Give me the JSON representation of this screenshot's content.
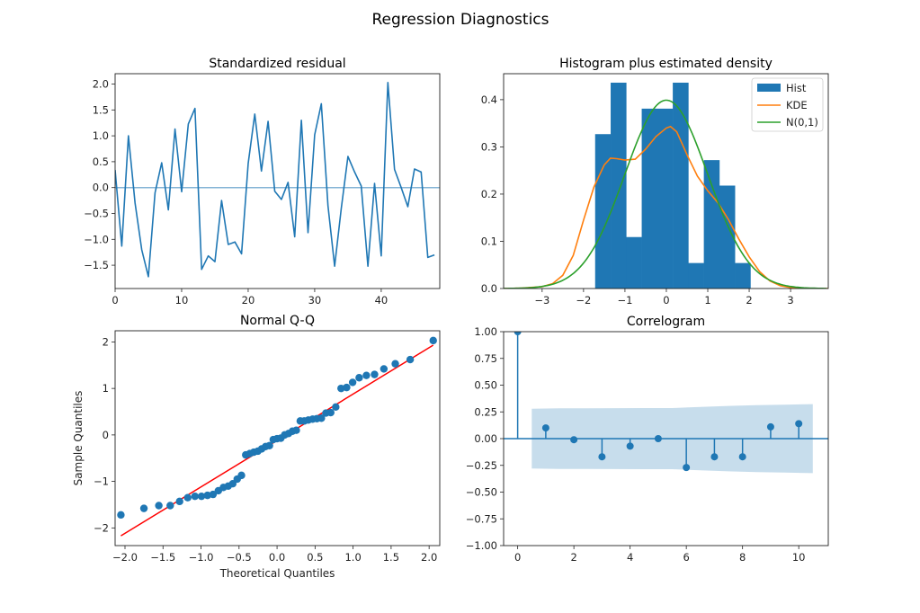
{
  "figure": {
    "title": "Regression Diagnostics"
  },
  "chart_data": [
    {
      "id": "residual",
      "type": "line",
      "title": "Standardized residual",
      "xlabel": "",
      "ylabel": "",
      "xlim": [
        0,
        48.8
      ],
      "ylim": [
        -1.95,
        2.2
      ],
      "xticks": [
        0,
        10,
        20,
        30,
        40
      ],
      "xtick_labels": [
        "0",
        "10",
        "20",
        "30",
        "40"
      ],
      "yticks": [
        -1.5,
        -1.0,
        -0.5,
        0.0,
        0.5,
        1.0,
        1.5,
        2.0
      ],
      "ytick_labels": [
        "−1.5",
        "−1.0",
        "−0.5",
        "0.0",
        "0.5",
        "1.0",
        "1.5",
        "2.0"
      ],
      "reference_line": 0.0,
      "color": "#1f77b4",
      "x": [
        0,
        1,
        2,
        3,
        4,
        5,
        6,
        7,
        8,
        9,
        10,
        11,
        12,
        13,
        14,
        15,
        16,
        17,
        18,
        19,
        20,
        21,
        22,
        23,
        24,
        25,
        26,
        27,
        28,
        29,
        30,
        31,
        32,
        33,
        34,
        35,
        36,
        37,
        38,
        39,
        40,
        41,
        42,
        43,
        44,
        45,
        46,
        47,
        48
      ],
      "values": [
        0.34,
        -1.13,
        1.0,
        -0.3,
        -1.2,
        -1.72,
        -0.1,
        0.48,
        -0.43,
        1.13,
        -0.08,
        1.23,
        1.53,
        -1.58,
        -1.32,
        -1.43,
        -0.25,
        -1.1,
        -1.05,
        -1.28,
        0.47,
        1.42,
        0.32,
        1.28,
        -0.07,
        -0.23,
        0.1,
        -0.95,
        1.3,
        -0.87,
        1.02,
        1.62,
        -0.35,
        -1.52,
        -0.4,
        0.6,
        0.3,
        0.03,
        -1.52,
        0.08,
        -1.32,
        2.03,
        0.35,
        0.0,
        -0.37,
        0.36,
        0.3,
        -1.35,
        -1.3
      ]
    },
    {
      "id": "histogram",
      "type": "bar",
      "title": "Histogram plus estimated density",
      "xlim": [
        -3.93,
        3.91
      ],
      "ylim": [
        0,
        0.455
      ],
      "xticks": [
        -3,
        -2,
        -1,
        0,
        1,
        2,
        3
      ],
      "xtick_labels": [
        "−3",
        "−2",
        "−1",
        "0",
        "1",
        "2",
        "3"
      ],
      "yticks": [
        0.0,
        0.1,
        0.2,
        0.3,
        0.4
      ],
      "ytick_labels": [
        "0.0",
        "0.1",
        "0.2",
        "0.3",
        "0.4"
      ],
      "bin_edges": [
        -1.72,
        -1.345,
        -0.97,
        -0.595,
        -0.22,
        0.155,
        0.53,
        0.905,
        1.28,
        1.655,
        2.03
      ],
      "values": [
        0.327,
        0.436,
        0.109,
        0.381,
        0.381,
        0.436,
        0.054,
        0.272,
        0.218,
        0.054
      ],
      "series": [
        {
          "name": "Hist",
          "color": "#1f77b4",
          "kind": "bar"
        },
        {
          "name": "KDE",
          "color": "#ff7f0e",
          "kind": "line",
          "x": [
            -3.93,
            -3.5,
            -3.0,
            -2.75,
            -2.5,
            -2.25,
            -2.0,
            -1.75,
            -1.5,
            -1.35,
            -1.2,
            -1.0,
            -0.75,
            -0.5,
            -0.25,
            0.0,
            0.1,
            0.25,
            0.5,
            0.75,
            1.0,
            1.25,
            1.5,
            1.75,
            2.0,
            2.25,
            2.5,
            2.75,
            3.0,
            3.5,
            3.91
          ],
          "y": [
            0.0,
            0.001,
            0.004,
            0.01,
            0.028,
            0.07,
            0.145,
            0.215,
            0.262,
            0.276,
            0.275,
            0.272,
            0.274,
            0.295,
            0.322,
            0.34,
            0.343,
            0.332,
            0.283,
            0.238,
            0.207,
            0.181,
            0.146,
            0.105,
            0.067,
            0.036,
            0.016,
            0.006,
            0.002,
            0.0,
            0.0
          ]
        },
        {
          "name": "N(0,1)",
          "color": "#2ca02c",
          "kind": "line",
          "function": "standard_normal_pdf"
        }
      ],
      "legend": {
        "position": "top-right",
        "entries": [
          "Hist",
          "KDE",
          "N(0,1)"
        ]
      }
    },
    {
      "id": "qq",
      "type": "scatter",
      "title": "Normal Q-Q",
      "xlabel": "Theoretical Quantiles",
      "ylabel": "Sample Quantiles",
      "xlim": [
        -2.13,
        2.14
      ],
      "ylim": [
        -2.38,
        2.24
      ],
      "xticks": [
        -2.0,
        -1.5,
        -1.0,
        -0.5,
        0.0,
        0.5,
        1.0,
        1.5,
        2.0
      ],
      "xtick_labels": [
        "−2.0",
        "−1.5",
        "−1.0",
        "−0.5",
        "0.0",
        "0.5",
        "1.0",
        "1.5",
        "2.0"
      ],
      "yticks": [
        -2,
        -1,
        0,
        1,
        2
      ],
      "ytick_labels": [
        "−2",
        "−1",
        "0",
        "1",
        "2"
      ],
      "point_color": "#1f77b4",
      "line_color": "#ff0000",
      "fit_line": {
        "x": [
          -2.054,
          2.054
        ],
        "y": [
          -2.17,
          1.93
        ]
      },
      "x": [
        -2.054,
        -1.751,
        -1.555,
        -1.405,
        -1.282,
        -1.175,
        -1.08,
        -0.994,
        -0.915,
        -0.842,
        -0.772,
        -0.706,
        -0.643,
        -0.583,
        -0.524,
        -0.468,
        -0.412,
        -0.358,
        -0.305,
        -0.253,
        -0.202,
        -0.151,
        -0.1,
        -0.05,
        0.0,
        0.05,
        0.1,
        0.151,
        0.202,
        0.253,
        0.305,
        0.358,
        0.412,
        0.468,
        0.524,
        0.583,
        0.643,
        0.706,
        0.772,
        0.842,
        0.915,
        0.994,
        1.08,
        1.175,
        1.282,
        1.405,
        1.555,
        1.751,
        2.054
      ],
      "y": [
        -1.72,
        -1.58,
        -1.52,
        -1.52,
        -1.43,
        -1.35,
        -1.32,
        -1.32,
        -1.3,
        -1.28,
        -1.2,
        -1.13,
        -1.1,
        -1.05,
        -0.95,
        -0.87,
        -0.43,
        -0.4,
        -0.37,
        -0.35,
        -0.3,
        -0.25,
        -0.23,
        -0.1,
        -0.08,
        -0.07,
        0.0,
        0.03,
        0.08,
        0.1,
        0.3,
        0.3,
        0.32,
        0.34,
        0.35,
        0.36,
        0.47,
        0.48,
        0.6,
        1.0,
        1.02,
        1.13,
        1.23,
        1.28,
        1.3,
        1.42,
        1.53,
        1.62,
        2.03
      ]
    },
    {
      "id": "correlogram",
      "type": "bar",
      "subtype": "stem",
      "title": "Correlogram",
      "xlim": [
        -0.5,
        11.05
      ],
      "ylim": [
        -1.0,
        1.0
      ],
      "xticks": [
        0,
        2,
        4,
        6,
        8,
        10
      ],
      "xtick_labels": [
        "0",
        "2",
        "4",
        "6",
        "8",
        "10"
      ],
      "yticks": [
        -1.0,
        -0.75,
        -0.5,
        -0.25,
        0.0,
        0.25,
        0.5,
        0.75,
        1.0
      ],
      "ytick_labels": [
        "−1.00",
        "−0.75",
        "−0.50",
        "−0.25",
        "0.00",
        "0.25",
        "0.50",
        "0.75",
        "1.00"
      ],
      "color": "#1f77b4",
      "band_color": "#1f77b4",
      "categories": [
        0,
        1,
        2,
        3,
        4,
        5,
        6,
        7,
        8,
        9,
        10
      ],
      "values": [
        1.0,
        0.1,
        -0.01,
        -0.17,
        -0.07,
        0.0,
        -0.27,
        -0.17,
        -0.17,
        0.11,
        0.14
      ],
      "confidence_band": {
        "lags": [
          0.5,
          1.5,
          2.5,
          3.5,
          4.5,
          5.5,
          6.5,
          7.5,
          8.5,
          9.5,
          10.5
        ],
        "upper": [
          0.28,
          0.283,
          0.283,
          0.285,
          0.286,
          0.286,
          0.297,
          0.306,
          0.313,
          0.318,
          0.323
        ],
        "lower": [
          -0.28,
          -0.283,
          -0.283,
          -0.285,
          -0.286,
          -0.286,
          -0.297,
          -0.306,
          -0.313,
          -0.318,
          -0.323
        ]
      }
    }
  ]
}
